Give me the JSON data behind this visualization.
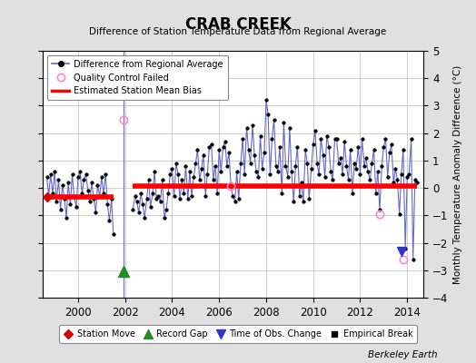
{
  "title": "CRAB CREEK",
  "subtitle": "Difference of Station Temperature Data from Regional Average",
  "ylabel": "Monthly Temperature Anomaly Difference (°C)",
  "xlim": [
    1998.5,
    2014.7
  ],
  "ylim": [
    -4,
    5
  ],
  "yticks": [
    -4,
    -3,
    -2,
    -1,
    0,
    1,
    2,
    3,
    4,
    5
  ],
  "xticks": [
    2000,
    2002,
    2004,
    2006,
    2008,
    2010,
    2012,
    2014
  ],
  "background_color": "#e0e0e0",
  "plot_bg_color": "#ffffff",
  "line_color": "#6666cc",
  "marker_color": "#000000",
  "bias_color": "#ff0000",
  "bias_linewidth": 4.0,
  "data_linewidth": 0.8,
  "segment1_bias": -0.32,
  "segment2_bias": 0.07,
  "segment1_start": 1998.67,
  "segment1_end": 2001.5,
  "segment2_start": 2002.33,
  "segment2_end": 2014.42,
  "gap_x": 2001.92,
  "record_gap_x": 2001.92,
  "record_gap_y": -3.05,
  "station_move_x": 1998.67,
  "station_move_y": -0.32,
  "qc_failed_points": [
    [
      2001.92,
      2.5
    ],
    [
      2006.5,
      0.07
    ],
    [
      2012.83,
      -0.95
    ],
    [
      2013.83,
      -2.6
    ]
  ],
  "time_of_obs_x": 2013.75,
  "time_of_obs_y": -2.3,
  "watermark": "Berkeley Earth",
  "series_x": [
    1998.67,
    1998.75,
    1998.83,
    1998.92,
    1999.0,
    1999.08,
    1999.17,
    1999.25,
    1999.33,
    1999.42,
    1999.5,
    1999.58,
    1999.67,
    1999.75,
    1999.83,
    1999.92,
    2000.0,
    2000.08,
    2000.17,
    2000.25,
    2000.33,
    2000.42,
    2000.5,
    2000.58,
    2000.67,
    2000.75,
    2000.83,
    2000.92,
    2001.0,
    2001.08,
    2001.17,
    2001.25,
    2001.33,
    2001.42,
    2001.5,
    2002.33,
    2002.42,
    2002.5,
    2002.58,
    2002.67,
    2002.75,
    2002.83,
    2002.92,
    2003.0,
    2003.08,
    2003.17,
    2003.25,
    2003.33,
    2003.42,
    2003.5,
    2003.58,
    2003.67,
    2003.75,
    2003.83,
    2003.92,
    2004.0,
    2004.08,
    2004.17,
    2004.25,
    2004.33,
    2004.42,
    2004.5,
    2004.58,
    2004.67,
    2004.75,
    2004.83,
    2004.92,
    2005.0,
    2005.08,
    2005.17,
    2005.25,
    2005.33,
    2005.42,
    2005.5,
    2005.58,
    2005.67,
    2005.75,
    2005.83,
    2005.92,
    2006.0,
    2006.08,
    2006.17,
    2006.25,
    2006.33,
    2006.42,
    2006.5,
    2006.58,
    2006.67,
    2006.75,
    2006.83,
    2006.92,
    2007.0,
    2007.08,
    2007.17,
    2007.25,
    2007.33,
    2007.42,
    2007.5,
    2007.58,
    2007.67,
    2007.75,
    2007.83,
    2007.92,
    2008.0,
    2008.08,
    2008.17,
    2008.25,
    2008.33,
    2008.42,
    2008.5,
    2008.58,
    2008.67,
    2008.75,
    2008.83,
    2008.92,
    2009.0,
    2009.08,
    2009.17,
    2009.25,
    2009.33,
    2009.42,
    2009.5,
    2009.58,
    2009.67,
    2009.75,
    2009.83,
    2009.92,
    2010.0,
    2010.08,
    2010.17,
    2010.25,
    2010.33,
    2010.42,
    2010.5,
    2010.58,
    2010.67,
    2010.75,
    2010.83,
    2010.92,
    2011.0,
    2011.08,
    2011.17,
    2011.25,
    2011.33,
    2011.42,
    2011.5,
    2011.58,
    2011.67,
    2011.75,
    2011.83,
    2011.92,
    2012.0,
    2012.08,
    2012.17,
    2012.25,
    2012.33,
    2012.42,
    2012.5,
    2012.58,
    2012.67,
    2012.75,
    2012.83,
    2012.92,
    2013.0,
    2013.08,
    2013.17,
    2013.25,
    2013.33,
    2013.42,
    2013.5,
    2013.58,
    2013.67,
    2013.75,
    2013.83,
    2013.92,
    2014.0,
    2014.08,
    2014.17,
    2014.25,
    2014.33,
    2014.42
  ],
  "series_y": [
    0.4,
    -0.3,
    0.5,
    -0.2,
    0.6,
    -0.5,
    0.3,
    -0.8,
    0.1,
    -0.4,
    -1.1,
    0.2,
    -0.6,
    0.5,
    -0.3,
    -0.7,
    0.4,
    0.6,
    -0.2,
    0.3,
    0.5,
    -0.1,
    -0.5,
    0.2,
    -0.4,
    -0.9,
    0.1,
    -0.3,
    0.4,
    -0.2,
    0.5,
    -0.6,
    -1.2,
    -0.4,
    -1.7,
    -0.8,
    -0.3,
    -0.5,
    -0.9,
    -0.2,
    -0.6,
    -1.1,
    -0.4,
    0.3,
    -0.7,
    -0.2,
    0.6,
    -0.4,
    -0.3,
    -0.5,
    0.3,
    -1.1,
    -0.8,
    -0.2,
    0.5,
    0.7,
    -0.3,
    0.9,
    0.5,
    -0.4,
    0.3,
    -0.2,
    0.8,
    -0.4,
    0.6,
    -0.3,
    0.4,
    0.9,
    1.4,
    0.3,
    0.7,
    1.2,
    -0.3,
    0.5,
    1.5,
    1.6,
    0.3,
    0.8,
    -0.2,
    1.4,
    0.6,
    1.5,
    1.7,
    0.8,
    1.3,
    0.07,
    -0.3,
    -0.5,
    0.6,
    -0.4,
    0.9,
    1.8,
    0.5,
    2.2,
    1.4,
    0.9,
    2.3,
    1.2,
    0.6,
    0.4,
    1.9,
    0.7,
    1.3,
    3.2,
    2.7,
    0.5,
    1.8,
    2.5,
    0.8,
    0.6,
    1.5,
    -0.2,
    2.4,
    0.8,
    0.4,
    2.2,
    0.6,
    -0.5,
    0.8,
    1.5,
    -0.3,
    0.2,
    -0.5,
    1.4,
    0.9,
    -0.4,
    0.7,
    1.6,
    2.1,
    0.9,
    0.5,
    1.8,
    1.2,
    0.4,
    1.9,
    1.5,
    0.6,
    0.3,
    1.8,
    1.8,
    0.9,
    1.1,
    0.5,
    1.7,
    0.8,
    0.3,
    1.4,
    -0.2,
    0.9,
    0.7,
    1.5,
    0.5,
    1.8,
    0.8,
    1.1,
    0.6,
    0.3,
    0.9,
    1.4,
    -0.2,
    0.6,
    -0.8,
    0.8,
    1.5,
    1.8,
    0.4,
    1.3,
    1.6,
    0.2,
    0.7,
    0.3,
    -0.95,
    0.5,
    1.4,
    -2.2,
    0.4,
    0.5,
    1.8,
    -2.6,
    0.3,
    0.2,
    0.3,
    0.1,
    0.4,
    0.3,
    0.2,
    0.1
  ]
}
